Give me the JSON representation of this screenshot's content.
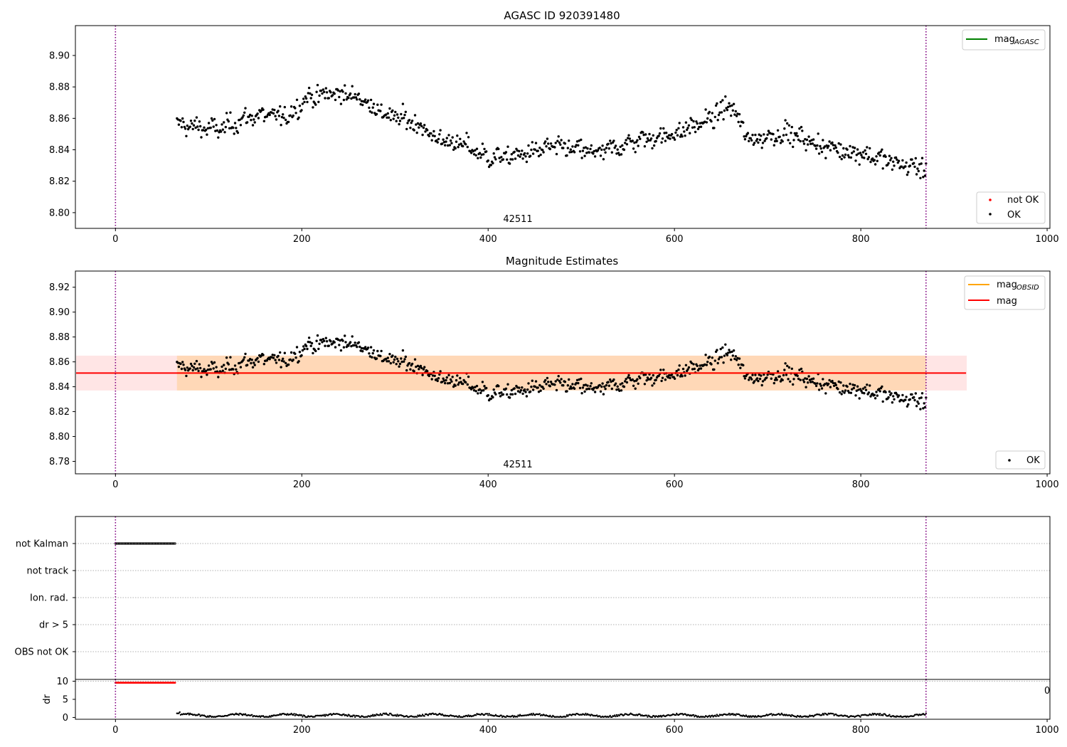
{
  "chart_data": [
    {
      "type": "scatter",
      "title": "AGASC ID 920391480",
      "xlabel": "",
      "ylabel": "",
      "xlim": [
        -43,
        1003
      ],
      "ylim": [
        8.79,
        8.919
      ],
      "xticks": [
        0,
        200,
        400,
        600,
        800,
        1000
      ],
      "yticks": [
        8.8,
        8.82,
        8.84,
        8.86,
        8.88,
        8.9
      ],
      "grid": false,
      "vlines": [
        0,
        870
      ],
      "annotation": "42511",
      "series": [
        {
          "name": "not OK",
          "color": "#ff0000",
          "values": []
        },
        {
          "name": "OK",
          "color": "#000000",
          "x_range": [
            66,
            870
          ],
          "count": 800,
          "trend_x": [
            66,
            110,
            150,
            185,
            205,
            235,
            260,
            290,
            320,
            345,
            375,
            400,
            430,
            470,
            520,
            560,
            600,
            640,
            660,
            680,
            720,
            760,
            800,
            840,
            870
          ],
          "trend_y": [
            8.856,
            8.853,
            8.862,
            8.861,
            8.873,
            8.876,
            8.874,
            8.862,
            8.858,
            8.847,
            8.843,
            8.835,
            8.836,
            8.842,
            8.838,
            8.846,
            8.85,
            8.86,
            8.869,
            8.846,
            8.851,
            8.842,
            8.838,
            8.831,
            8.828
          ]
        },
        {
          "name": "mag_AGASC",
          "color": "#008000",
          "values": []
        }
      ],
      "legend": [
        {
          "label": "mag",
          "sub": "AGASC",
          "placement": "top-right"
        },
        {
          "label": "not OK",
          "placement": "bottom-right"
        },
        {
          "label": "OK",
          "placement": "bottom-right"
        }
      ]
    },
    {
      "type": "scatter",
      "title": "Magnitude Estimates",
      "xlabel": "",
      "ylabel": "",
      "xlim": [
        -43,
        1003
      ],
      "ylim": [
        8.77,
        8.933
      ],
      "xticks": [
        0,
        200,
        400,
        600,
        800,
        1000
      ],
      "yticks": [
        8.78,
        8.8,
        8.82,
        8.84,
        8.86,
        8.88,
        8.9,
        8.92
      ],
      "grid": false,
      "vlines": [
        0,
        870
      ],
      "annotation": "42511",
      "mag": 8.851,
      "mag_band": [
        8.837,
        8.865
      ],
      "mag_obsid_band_x": [
        66,
        870
      ],
      "mag_band_x": [
        -43,
        913
      ],
      "series": [
        {
          "name": "mag_OBSID",
          "color": "#ffa500"
        },
        {
          "name": "mag",
          "color": "#ff0000"
        },
        {
          "name": "OK",
          "color": "#000000"
        }
      ],
      "legend": [
        {
          "label": "mag",
          "sub": "OBSID",
          "placement": "top-right"
        },
        {
          "label": "mag",
          "placement": "top-right"
        },
        {
          "label": "OK",
          "placement": "bottom-right"
        }
      ]
    },
    {
      "type": "scatter",
      "title": "",
      "xlim": [
        -43,
        1003
      ],
      "categories": [
        "not Kalman",
        "not track",
        "Ion. rad.",
        "dr > 5",
        "OBS not OK"
      ],
      "flag_not_kalman_x": [
        0,
        64
      ],
      "grid": "horizontal-dotted",
      "vlines": [
        0,
        870
      ]
    },
    {
      "type": "scatter",
      "title": "",
      "xlabel": "",
      "ylabel": "dr",
      "xlim": [
        -43,
        1003
      ],
      "ylim": [
        -0.5,
        10.5
      ],
      "yticks": [
        0,
        5,
        10
      ],
      "xticks": [
        0,
        200,
        400,
        600,
        800,
        1000
      ],
      "xtick_labels": [
        "0",
        "200",
        "400",
        "600",
        "800",
        "1000"
      ],
      "vlines": [
        0,
        870
      ],
      "clipped_label": "0",
      "series": [
        {
          "name": "dr clipped",
          "color": "#ff0000",
          "x_range": [
            0,
            64
          ],
          "value": 9.6
        },
        {
          "name": "dr",
          "color": "#000000",
          "x_range": [
            66,
            870
          ],
          "value_range": [
            0.2,
            1.3
          ]
        }
      ]
    }
  ]
}
